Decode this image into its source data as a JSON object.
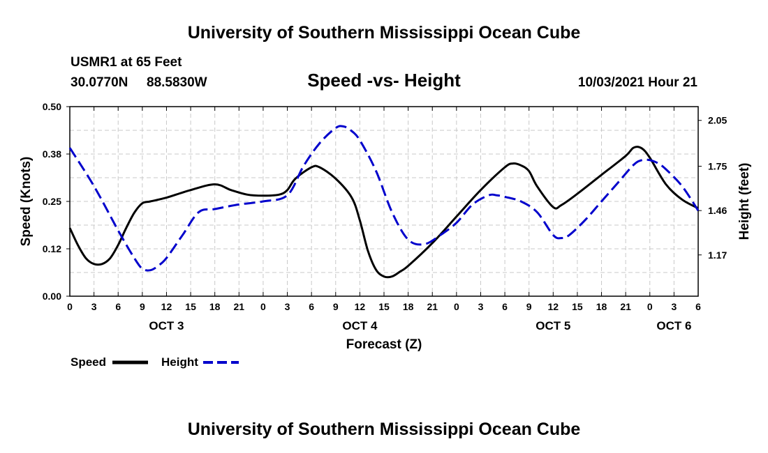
{
  "header": {
    "title": "University of Southern Mississippi Ocean Cube",
    "station": "USMR1 at 65 Feet",
    "lat": "30.0770N",
    "lon": "88.5830W",
    "date_label": "10/03/2021 Hour 21"
  },
  "footer": {
    "title": "University of Southern Mississippi Ocean Cube"
  },
  "legend": {
    "speed": "Speed",
    "height": "Height"
  },
  "colors": {
    "speed": "#000000",
    "height": "#0000cc",
    "grid": "#c8c8c8"
  },
  "chart_data": {
    "type": "line",
    "title": "Speed -vs- Height",
    "xlabel": "Forecast (Z)",
    "ylabel_left": "Speed (Knots)",
    "ylabel_right": "Height (feet)",
    "x_hours": [
      0,
      78
    ],
    "x_tick_labels": [
      "0",
      "3",
      "6",
      "9",
      "12",
      "15",
      "18",
      "21",
      "0",
      "3",
      "6",
      "9",
      "12",
      "15",
      "18",
      "21",
      "0",
      "3",
      "6",
      "9",
      "12",
      "15",
      "18",
      "21",
      "0",
      "3",
      "6"
    ],
    "day_labels": [
      {
        "label": "OCT 3",
        "hour": 12
      },
      {
        "label": "OCT 4",
        "hour": 36
      },
      {
        "label": "OCT 5",
        "hour": 60
      },
      {
        "label": "OCT 6",
        "hour": 75
      }
    ],
    "ylim_left": [
      0,
      0.5
    ],
    "left_ticks": [
      0.0,
      0.125,
      0.25,
      0.375,
      0.5
    ],
    "left_tick_labels": [
      "0.00",
      "0.12",
      "0.25",
      "0.38",
      "0.50"
    ],
    "ylim_right": [
      0.9,
      2.14
    ],
    "right_ticks": [
      1.17,
      1.46,
      1.75,
      2.05
    ],
    "right_tick_labels": [
      "1.17",
      "1.46",
      "1.75",
      "2.05"
    ],
    "series": [
      {
        "name": "Speed",
        "axis": "left",
        "style": "solid",
        "x": [
          0,
          1,
          2,
          3,
          4,
          5,
          6,
          7,
          8,
          9,
          10,
          12,
          15,
          18,
          20,
          22,
          24,
          26,
          27,
          28,
          30,
          31,
          33,
          35,
          36,
          37,
          38,
          39,
          40,
          41,
          42,
          45,
          48,
          51,
          54,
          55,
          56,
          57,
          58,
          60,
          61,
          63,
          66,
          69,
          70,
          71,
          72,
          74,
          76,
          78
        ],
        "values": [
          0.18,
          0.135,
          0.1,
          0.085,
          0.085,
          0.1,
          0.135,
          0.18,
          0.22,
          0.245,
          0.25,
          0.26,
          0.28,
          0.295,
          0.28,
          0.268,
          0.265,
          0.268,
          0.28,
          0.31,
          0.34,
          0.34,
          0.31,
          0.26,
          0.2,
          0.12,
          0.07,
          0.052,
          0.052,
          0.065,
          0.08,
          0.14,
          0.21,
          0.28,
          0.34,
          0.35,
          0.345,
          0.33,
          0.29,
          0.235,
          0.24,
          0.27,
          0.32,
          0.37,
          0.392,
          0.39,
          0.365,
          0.295,
          0.255,
          0.232
        ]
      },
      {
        "name": "Height",
        "axis": "right",
        "style": "dashed",
        "x": [
          0,
          3,
          6,
          8,
          9,
          10,
          11,
          12,
          14,
          16,
          18,
          21,
          24,
          27,
          29,
          31,
          33,
          34,
          35,
          36,
          38,
          40,
          42,
          44,
          46,
          48,
          50,
          52,
          53,
          54,
          56,
          58,
          60,
          61,
          62,
          64,
          66,
          68,
          70,
          71,
          72,
          73,
          74,
          76,
          78
        ],
        "values": [
          1.87,
          1.62,
          1.33,
          1.15,
          1.08,
          1.07,
          1.1,
          1.15,
          1.3,
          1.45,
          1.47,
          1.5,
          1.52,
          1.56,
          1.75,
          1.9,
          2.0,
          2.01,
          1.98,
          1.92,
          1.72,
          1.45,
          1.27,
          1.24,
          1.3,
          1.38,
          1.5,
          1.56,
          1.56,
          1.55,
          1.52,
          1.45,
          1.3,
          1.28,
          1.3,
          1.4,
          1.52,
          1.64,
          1.76,
          1.79,
          1.79,
          1.77,
          1.73,
          1.62,
          1.46
        ]
      }
    ]
  }
}
